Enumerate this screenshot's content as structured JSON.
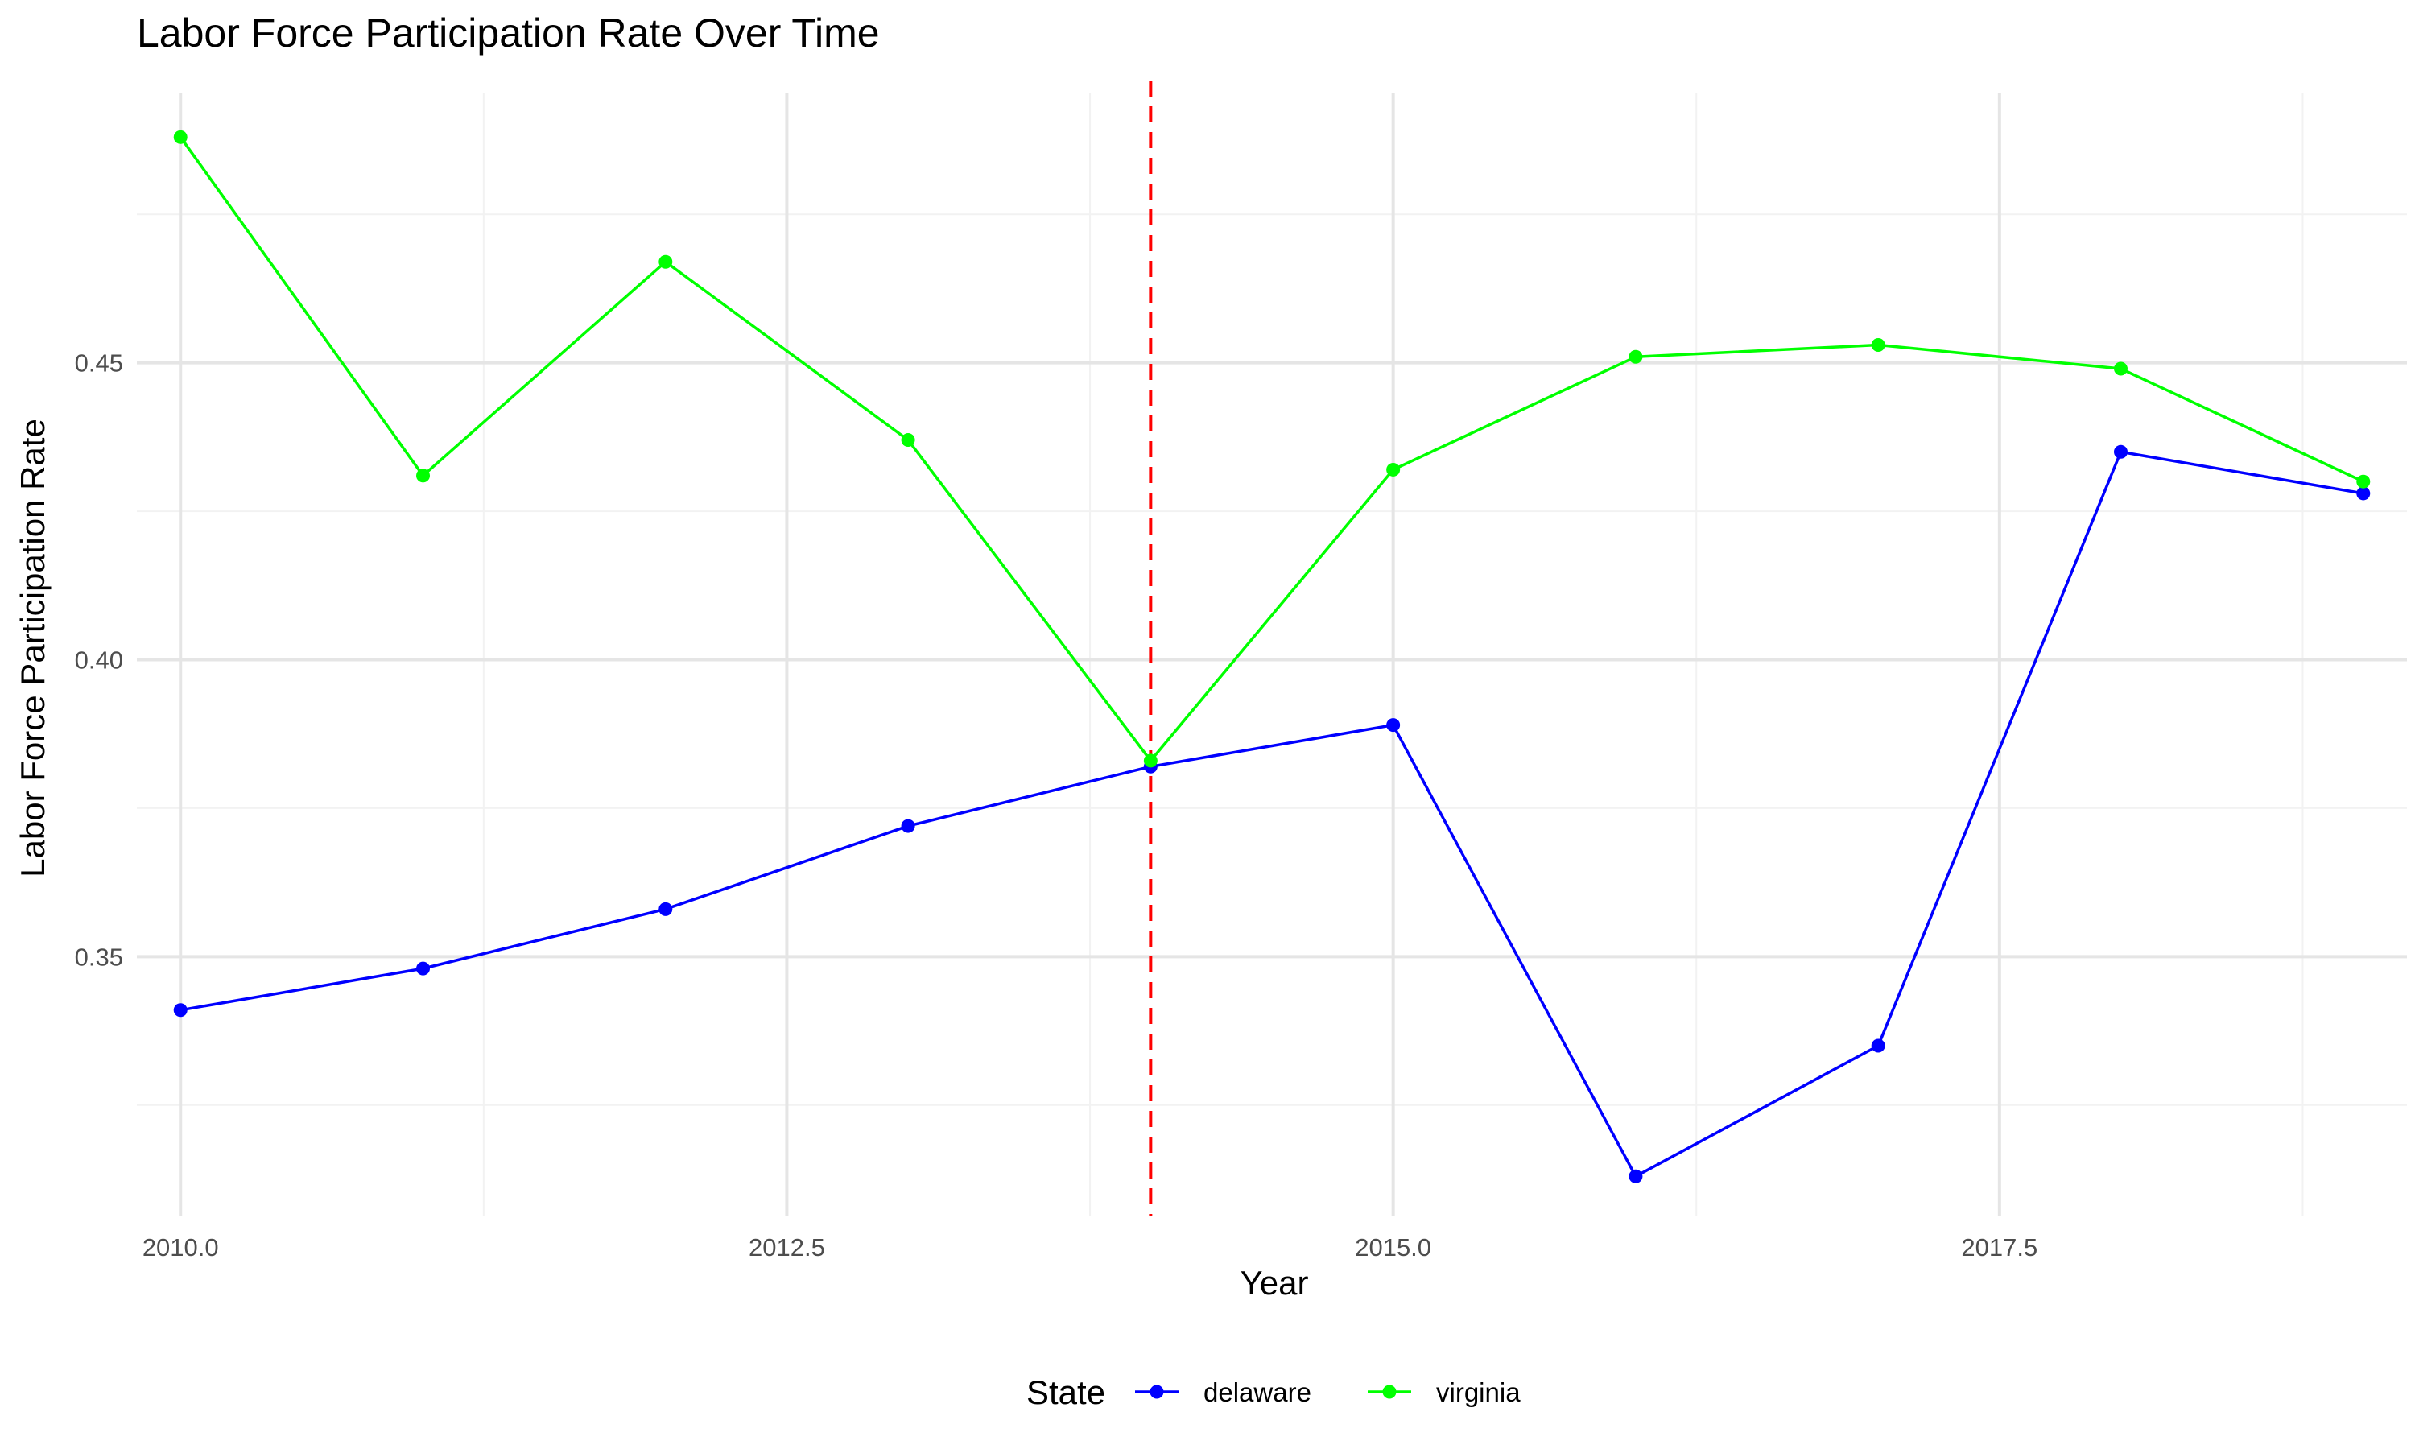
{
  "chart_data": {
    "type": "line",
    "title": "Labor Force Participation Rate Over Time",
    "xlabel": "Year",
    "ylabel": "Labor Force Participation Rate",
    "xlim": [
      2009.82,
      2019.18
    ],
    "ylim": [
      0.3064,
      0.4955
    ],
    "x_ticks": [
      2010.0,
      2012.5,
      2015.0,
      2017.5
    ],
    "x_tick_labels": [
      "2010.0",
      "2012.5",
      "2015.0",
      "2017.5"
    ],
    "x_minor_ticks": [
      2011.25,
      2013.75,
      2016.25,
      2018.75
    ],
    "y_ticks": [
      0.35,
      0.4,
      0.45
    ],
    "y_tick_labels": [
      "0.35",
      "0.40",
      "0.45"
    ],
    "y_minor_ticks": [
      0.325,
      0.375,
      0.425,
      0.475
    ],
    "grid": true,
    "legend": {
      "title": "State",
      "position": "bottom"
    },
    "x": [
      2010,
      2011,
      2012,
      2013,
      2014,
      2015,
      2016,
      2017,
      2018,
      2019
    ],
    "series": [
      {
        "name": "delaware",
        "color": "#0000FF",
        "values": [
          0.341,
          0.348,
          0.358,
          0.372,
          0.382,
          0.389,
          0.313,
          0.335,
          0.435,
          0.428
        ]
      },
      {
        "name": "virginia",
        "color": "#00FF00",
        "values": [
          0.488,
          0.431,
          0.467,
          0.437,
          0.383,
          0.432,
          0.451,
          0.453,
          0.449,
          0.43
        ]
      }
    ],
    "reference_line": {
      "x": 2014,
      "color": "#FF0000",
      "style": "dashed"
    }
  }
}
